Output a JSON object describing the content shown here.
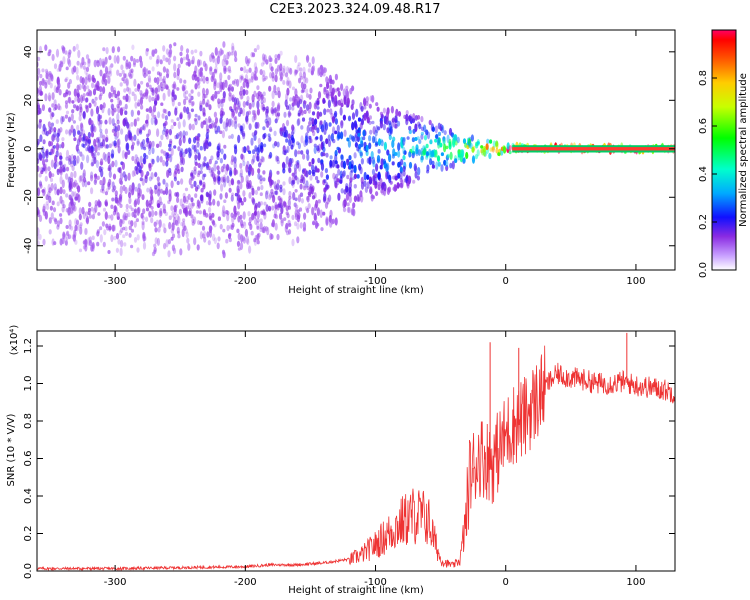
{
  "title": "C2E3.2023.324.09.48.R17",
  "colors": {
    "spectrum_points": "#7a18f0",
    "snr_line": "#ee3333",
    "ridge": "#ff3b30"
  },
  "chart_data": [
    {
      "type": "heatmap",
      "xlabel": "Height of straight line (km)",
      "ylabel": "Frequency (Hz)",
      "xlim": [
        -360,
        130
      ],
      "ylim": [
        -50,
        49
      ],
      "xticks": [
        -300,
        -200,
        -100,
        0,
        100
      ],
      "yticks": [
        -40,
        -20,
        0,
        20,
        40
      ],
      "colorbar": {
        "label": "Normalized spectral amplitude",
        "range": [
          0.0,
          1.0
        ],
        "ticks": [
          0.0,
          0.2,
          0.4,
          0.6,
          0.8
        ],
        "tick_labels": [
          "0.0",
          "0.2",
          "0.4",
          "0.6",
          "0.8"
        ]
      },
      "description_points": [
        {
          "x": -360,
          "freq_spread": 50,
          "amplitude": 0.08
        },
        {
          "x": -200,
          "freq_spread": 50,
          "amplitude": 0.1
        },
        {
          "x": -150,
          "freq_spread": 40,
          "amplitude": 0.12
        },
        {
          "x": -100,
          "freq_spread": 20,
          "amplitude": 0.22
        },
        {
          "x": -60,
          "freq_spread": 12,
          "amplitude": 0.35
        },
        {
          "x": -30,
          "freq_spread": 5,
          "amplitude": 0.55
        },
        {
          "x": 0,
          "freq_spread": 2,
          "amplitude": 0.75
        },
        {
          "x": 20,
          "freq_spread": 1,
          "amplitude": 0.9
        },
        {
          "x": 130,
          "freq_spread": 1,
          "amplitude": 0.9
        }
      ]
    },
    {
      "type": "line",
      "xlabel": "Height of straight line (km)",
      "ylabel": "SNR (10 * V/V)",
      "y_multiplier_label": "(x10⁴)",
      "xlim": [
        -360,
        130
      ],
      "ylim": [
        0,
        1.28
      ],
      "xticks": [
        -300,
        -200,
        -100,
        0,
        100
      ],
      "yticks": [
        0.0,
        0.2,
        0.4,
        0.6,
        0.8,
        1.0,
        1.2
      ],
      "ytick_labels": [
        "0.0",
        "0.2",
        "0.4",
        "0.6",
        "0.8",
        "1.0",
        "1.2"
      ],
      "series": [
        {
          "x": [
            -360,
            -300,
            -250,
            -200,
            -180,
            -160,
            -140,
            -120,
            -110,
            -100,
            -90,
            -80,
            -70,
            -60,
            -50,
            -45,
            -40,
            -35,
            -30,
            -28,
            -25,
            -20,
            -15,
            -10,
            -5,
            0,
            5,
            10,
            15,
            20,
            25,
            30,
            35,
            40,
            50,
            60,
            70,
            80,
            90,
            100,
            110,
            120,
            130
          ],
          "y": [
            0.01,
            0.01,
            0.015,
            0.02,
            0.03,
            0.03,
            0.04,
            0.06,
            0.09,
            0.14,
            0.2,
            0.26,
            0.3,
            0.28,
            0.06,
            0.04,
            0.03,
            0.06,
            0.3,
            0.5,
            0.55,
            0.62,
            0.6,
            0.58,
            0.65,
            0.72,
            0.78,
            0.8,
            0.82,
            0.88,
            0.92,
            0.98,
            1.02,
            1.05,
            1.03,
            1.02,
            1.0,
            1.0,
            1.01,
            0.99,
            0.98,
            0.97,
            0.95
          ]
        }
      ],
      "spikes": [
        {
          "x": -25,
          "y": 0.47
        },
        {
          "x": -12,
          "y": 1.22
        },
        {
          "x": 10,
          "y": 1.19
        },
        {
          "x": 93,
          "y": 1.27
        }
      ]
    }
  ]
}
